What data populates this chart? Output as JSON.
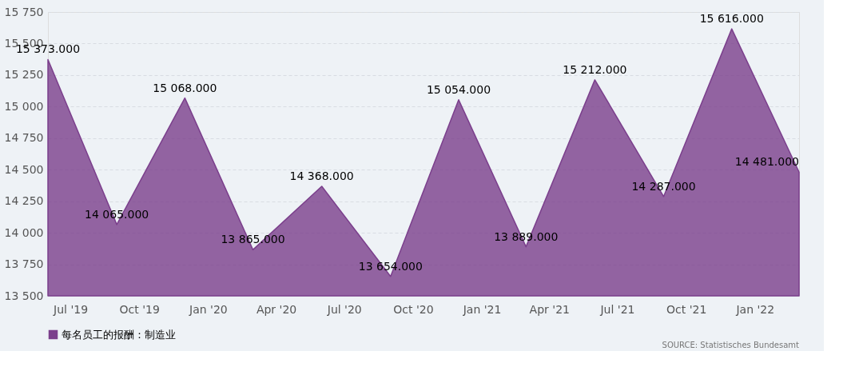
{
  "chart_data": {
    "type": "area",
    "x": [
      "2019-06",
      "2019-09",
      "2019-12",
      "2020-03",
      "2020-06",
      "2020-09",
      "2020-12",
      "2021-03",
      "2021-06",
      "2021-09",
      "2021-12",
      "2022-03"
    ],
    "series": [
      {
        "name": "每名员工的报酬：制造业",
        "color": "#7b3f8c",
        "values": [
          15373,
          14065,
          15068,
          13865,
          14368,
          13654,
          15054,
          13889,
          15212,
          14287,
          15616,
          14481
        ],
        "value_labels": [
          "15 373.000",
          "14 065.000",
          "15 068.000",
          "13 865.000",
          "14 368.000",
          "13 654.000",
          "15 054.000",
          "13 889.000",
          "15 212.000",
          "14 287.000",
          "15 616.000",
          "14 481.000"
        ]
      }
    ],
    "xlim": [
      "2019-06",
      "2022-03"
    ],
    "xticks": [
      {
        "value": "2019-07",
        "label": "Jul '19"
      },
      {
        "value": "2019-10",
        "label": "Oct '19"
      },
      {
        "value": "2020-01",
        "label": "Jan '20"
      },
      {
        "value": "2020-04",
        "label": "Apr '20"
      },
      {
        "value": "2020-07",
        "label": "Jul '20"
      },
      {
        "value": "2020-10",
        "label": "Oct '20"
      },
      {
        "value": "2021-01",
        "label": "Jan '21"
      },
      {
        "value": "2021-04",
        "label": "Apr '21"
      },
      {
        "value": "2021-07",
        "label": "Jul '21"
      },
      {
        "value": "2021-10",
        "label": "Oct '21"
      },
      {
        "value": "2022-01",
        "label": "Jan '22"
      }
    ],
    "ylim": [
      13500,
      15750
    ],
    "yticks": [
      {
        "value": 13500,
        "label": "13 500"
      },
      {
        "value": 13750,
        "label": "13 750"
      },
      {
        "value": 14000,
        "label": "14 000"
      },
      {
        "value": 14250,
        "label": "14 250"
      },
      {
        "value": 14500,
        "label": "14 500"
      },
      {
        "value": 14750,
        "label": "14 750"
      },
      {
        "value": 15000,
        "label": "15 000"
      },
      {
        "value": 15250,
        "label": "15 250"
      },
      {
        "value": 15500,
        "label": "15 500"
      },
      {
        "value": 15750,
        "label": "15 750"
      }
    ],
    "grid": "y",
    "legend": "bottom",
    "annotations": [
      "SOURCE: Statistisches Bundesamt"
    ]
  }
}
